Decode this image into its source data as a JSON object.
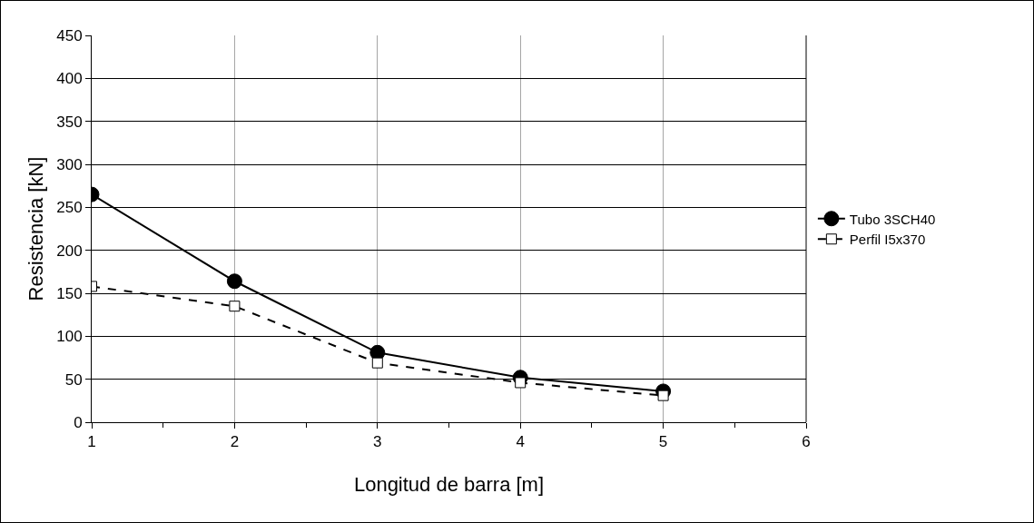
{
  "chart_data": {
    "type": "line",
    "xlabel": "Longitud de barra [m]",
    "ylabel": "Resistencia [kN]",
    "x": [
      1,
      2,
      3,
      4,
      5
    ],
    "series": [
      {
        "name": "Tubo 3SCH40",
        "color": "#000000",
        "values": [
          265,
          164,
          81,
          52,
          36
        ],
        "marker": "circle",
        "line_style": "solid"
      },
      {
        "name": "Perfil I5x370",
        "color": "#000000",
        "values": [
          158,
          135,
          69,
          46,
          31
        ],
        "marker": "square",
        "line_style": "dashed"
      }
    ],
    "xlim": [
      1,
      6
    ],
    "xticks": [
      1,
      2,
      3,
      4,
      5,
      6
    ],
    "ylim": [
      0,
      450
    ],
    "yticks": [
      0,
      50,
      100,
      150,
      200,
      250,
      300,
      350,
      400,
      450
    ],
    "grid": true,
    "legend": "right"
  }
}
